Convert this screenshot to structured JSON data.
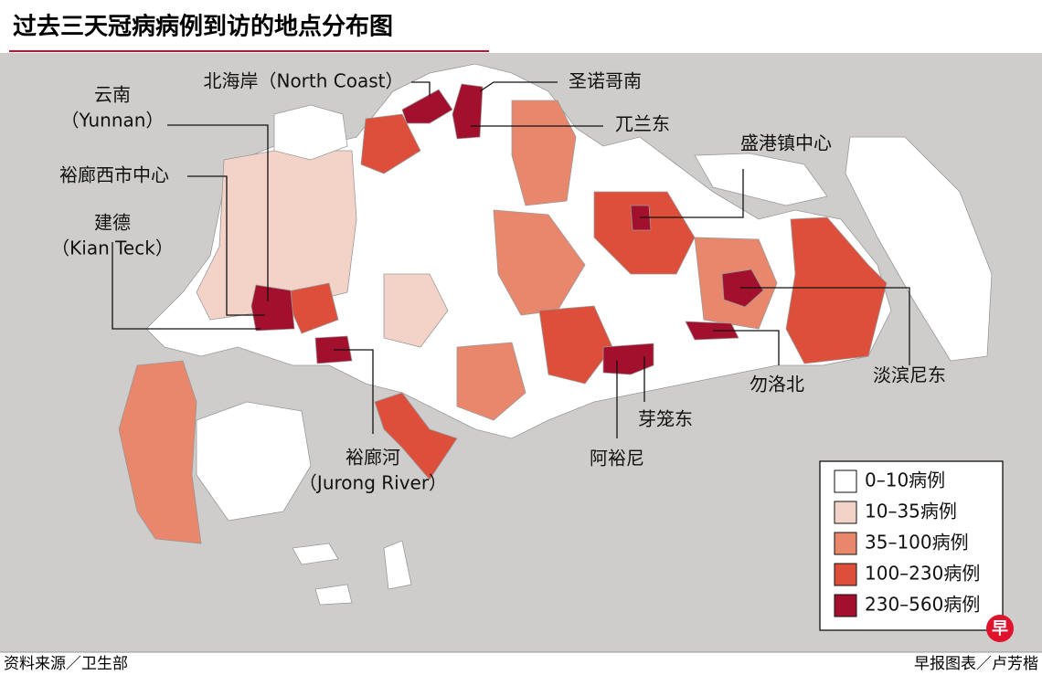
{
  "title": "过去三天冠病病例到访的地点分布图",
  "labels": [
    {
      "lines": [
        "北海岸（North Coast）"
      ]
    },
    {
      "lines": [
        "圣诺哥南"
      ]
    },
    {
      "lines": [
        "兀兰东"
      ]
    },
    {
      "lines": [
        "云南",
        "（Yunnan）"
      ]
    },
    {
      "lines": [
        "裕廊西市中心"
      ]
    },
    {
      "lines": [
        "建德",
        "（Kian Teck）"
      ]
    },
    {
      "lines": [
        "盛港镇中心"
      ]
    },
    {
      "lines": [
        "淡滨尼东"
      ]
    },
    {
      "lines": [
        "勿洛北"
      ]
    },
    {
      "lines": [
        "芽笼东"
      ]
    },
    {
      "lines": [
        "阿裕尼"
      ]
    },
    {
      "lines": [
        "裕廊河",
        "（Jurong River）"
      ]
    }
  ],
  "legend": [
    {
      "label": "0–10病例",
      "color": "#ffffff"
    },
    {
      "label": "10–35病例",
      "color": "#f3d3c8"
    },
    {
      "label": "35–100病例",
      "color": "#e8876c"
    },
    {
      "label": "100–230病例",
      "color": "#dd4f3a"
    },
    {
      "label": "230–560病例",
      "color": "#a3102d"
    }
  ],
  "source": "资料来源／卫生部",
  "credit": "早报图表／卢芳楷",
  "logo": "早"
}
